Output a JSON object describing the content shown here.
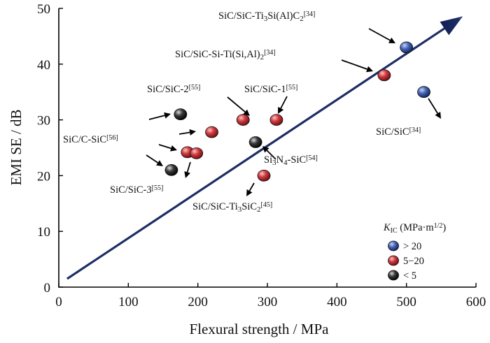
{
  "chart_data": {
    "type": "scatter",
    "xlabel": "Flexural strength / MPa",
    "ylabel": "EMI SE / dB",
    "xlim": [
      0,
      600
    ],
    "ylim": [
      0,
      50
    ],
    "xticks": [
      0,
      100,
      200,
      300,
      400,
      500,
      600
    ],
    "yticks": [
      0,
      10,
      20,
      30,
      40,
      50
    ],
    "grid": false,
    "legend": {
      "placement": "bottom-right",
      "title": {
        "symbol": "K",
        "sub": "IC",
        "text": " (MPa·m",
        "sup": "1/2",
        "close": ")"
      },
      "entries": [
        {
          "label": "> 20",
          "group": "high"
        },
        {
          "label": "5−20",
          "group": "mid"
        },
        {
          "label": "< 5",
          "group": "low"
        }
      ]
    },
    "group_colors": {
      "high": "#2c4a9a",
      "mid": "#c0262d",
      "low": "#222222"
    },
    "trend_arrow": {
      "from": [
        12,
        1.5
      ],
      "to": [
        580,
        48.5
      ],
      "color": "#1d2d66"
    },
    "points": [
      {
        "x": 500,
        "y": 43,
        "group": "high"
      },
      {
        "x": 525,
        "y": 35,
        "group": "high"
      },
      {
        "x": 468,
        "y": 38,
        "group": "mid"
      },
      {
        "x": 265,
        "y": 30,
        "group": "mid"
      },
      {
        "x": 313,
        "y": 30,
        "group": "mid"
      },
      {
        "x": 220,
        "y": 27.8,
        "group": "mid"
      },
      {
        "x": 185,
        "y": 24.2,
        "group": "mid"
      },
      {
        "x": 198,
        "y": 24,
        "group": "mid"
      },
      {
        "x": 295,
        "y": 20,
        "group": "mid"
      },
      {
        "x": 175,
        "y": 31,
        "group": "low"
      },
      {
        "x": 283,
        "y": 26,
        "group": "low"
      },
      {
        "x": 162,
        "y": 21,
        "group": "low"
      }
    ],
    "annotations": [
      {
        "parts": [
          [
            "SiC/SiC-Ti"
          ],
          [
            "3",
            "sub"
          ],
          [
            "Si(Al)C"
          ],
          [
            "2",
            "sub"
          ],
          [
            "[34]",
            "sup"
          ]
        ]
      },
      {
        "parts": [
          [
            "SiC/SiC-Si-Ti(Si,Al)"
          ],
          [
            "2",
            "sub"
          ],
          [
            "[34]",
            "sup"
          ]
        ]
      },
      {
        "parts": [
          [
            "SiC/SiC-2"
          ],
          [
            "[55]",
            "sup"
          ]
        ]
      },
      {
        "parts": [
          [
            "SiC/SiC-1"
          ],
          [
            "[55]",
            "sup"
          ]
        ]
      },
      {
        "parts": [
          [
            "SiC/C-SiC"
          ],
          [
            "[56]",
            "sup"
          ]
        ]
      },
      {
        "parts": [
          [
            "SiC/SiC"
          ],
          [
            "[34]",
            "sup"
          ]
        ]
      },
      {
        "parts": [
          [
            "Si"
          ],
          [
            "3",
            "sub"
          ],
          [
            "N"
          ],
          [
            "4",
            "sub"
          ],
          [
            "-SiC"
          ],
          [
            "[54]",
            "sup"
          ]
        ]
      },
      {
        "parts": [
          [
            "SiC/SiC-3"
          ],
          [
            "[55]",
            "sup"
          ]
        ]
      },
      {
        "parts": [
          [
            "SiC/SiC-Ti"
          ],
          [
            "3",
            "sub"
          ],
          [
            "SiC"
          ],
          [
            "2",
            "sub"
          ],
          [
            "[45]",
            "sup"
          ]
        ]
      }
    ]
  }
}
